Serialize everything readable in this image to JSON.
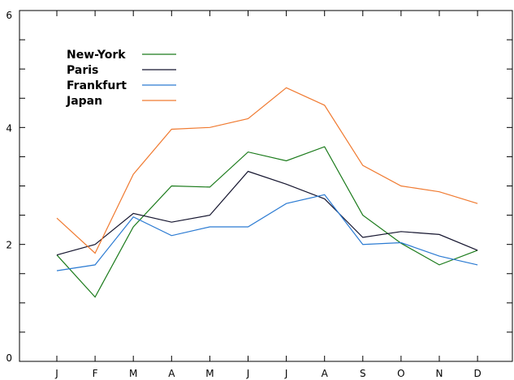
{
  "chart_data": {
    "type": "line",
    "title": "",
    "xlabel": "",
    "ylabel": "",
    "categories": [
      "J",
      "F",
      "M",
      "A",
      "M",
      "J",
      "J",
      "A",
      "S",
      "O",
      "N",
      "D"
    ],
    "ylim": [
      0,
      6
    ],
    "y_ticks": [
      0,
      2,
      4,
      6
    ],
    "grid": false,
    "legend_position": "top-left",
    "series": [
      {
        "name": "New-York",
        "color": "#1a7a1a",
        "values": [
          1.82,
          1.1,
          2.3,
          3.0,
          2.98,
          3.58,
          3.43,
          3.67,
          2.5,
          2.02,
          1.65,
          1.9
        ]
      },
      {
        "name": "Paris",
        "color": "#14142e",
        "values": [
          1.82,
          2.0,
          2.53,
          2.38,
          2.5,
          3.25,
          3.03,
          2.78,
          2.12,
          2.22,
          2.17,
          1.9
        ]
      },
      {
        "name": "Frankfurt",
        "color": "#2a7ad2",
        "values": [
          1.55,
          1.65,
          2.47,
          2.15,
          2.3,
          2.3,
          2.7,
          2.85,
          2.0,
          2.03,
          1.8,
          1.65
        ]
      },
      {
        "name": "Japan",
        "color": "#f07a30",
        "values": [
          2.45,
          1.85,
          3.2,
          3.97,
          4.0,
          4.15,
          4.68,
          4.38,
          3.35,
          3.0,
          2.9,
          2.7
        ]
      }
    ]
  }
}
